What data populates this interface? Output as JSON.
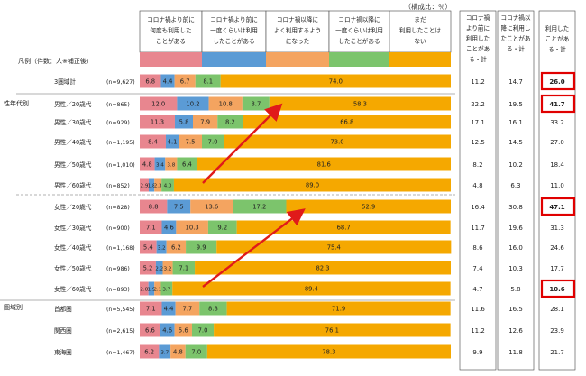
{
  "unit_note": "（構成比：％）",
  "legend": {
    "prefix": "凡例（件数：人※補正後）",
    "items": [
      {
        "label": "コロナ禍より前に何度も利用したことがある",
        "lines": [
          "コロナ禍より前に",
          "何度も利用した",
          "ことがある"
        ],
        "color": "#E8868F"
      },
      {
        "label": "コロナ禍より前に一度くらいは利用したことがある",
        "lines": [
          "コロナ禍より前に",
          "一度くらいは利用",
          "したことがある"
        ],
        "color": "#5B9BD5"
      },
      {
        "label": "コロナ禍以降によく利用するようになった",
        "lines": [
          "コロナ禍以降に",
          "よく利用するよう",
          "になった"
        ],
        "color": "#F4A460"
      },
      {
        "label": "コロナ禍以降に一度くらいは利用したことがある",
        "lines": [
          "コロナ禍以降に",
          "一度くらいは利用",
          "したことがある"
        ],
        "color": "#7CC46C"
      },
      {
        "label": "まだ利用したことはない",
        "lines": [
          "まだ",
          "利用したことは",
          "ない"
        ],
        "color": "#F5A800"
      }
    ]
  },
  "summary_headers": [
    [
      "コロナ禍",
      "より前に",
      "利用した",
      "ことがあ",
      "る・計"
    ],
    [
      "コロナ禍以",
      "降に利用し",
      "たことがあ",
      "る・計"
    ],
    [
      "利用した",
      "ことがあ",
      "る・計"
    ]
  ],
  "group_labels": {
    "sex_age": "性年代別",
    "region": "圏域別"
  },
  "chart_data": {
    "type": "bar",
    "stacked": true,
    "orientation": "horizontal",
    "title": "",
    "xlim": [
      0,
      100
    ],
    "series_names": [
      "コロナ禍より前に何度も利用したことがある",
      "コロナ禍より前に一度くらいは利用したことがある",
      "コロナ禍以降によく利用するようになった",
      "コロナ禍以降に一度くらいは利用したことがある",
      "まだ利用したことはない"
    ],
    "rows": [
      {
        "label": "3圏域計",
        "n": "(n=9,627)",
        "values": [
          6.8,
          4.4,
          6.7,
          8.1,
          74.0
        ],
        "before": "11.2",
        "after": "14.7",
        "total": "26.0",
        "highlight": true
      },
      {
        "label": "男性／20歳代",
        "n": "(n=865)",
        "values": [
          12.0,
          10.2,
          10.8,
          8.7,
          58.3
        ],
        "before": "22.2",
        "after": "19.5",
        "total": "41.7",
        "highlight": true
      },
      {
        "label": "男性／30歳代",
        "n": "(n=929)",
        "values": [
          11.3,
          5.8,
          7.9,
          8.2,
          66.8
        ],
        "before": "17.1",
        "after": "16.1",
        "total": "33.2",
        "highlight": false
      },
      {
        "label": "男性／40歳代",
        "n": "(n=1,195)",
        "values": [
          8.4,
          4.1,
          7.5,
          7.0,
          73.0
        ],
        "before": "12.5",
        "after": "14.5",
        "total": "27.0",
        "highlight": false
      },
      {
        "label": "男性／50歳代",
        "n": "(n=1,010)",
        "values": [
          4.8,
          3.4,
          3.8,
          6.4,
          81.6
        ],
        "before": "8.2",
        "after": "10.2",
        "total": "18.4",
        "highlight": false
      },
      {
        "label": "男性／60歳代",
        "n": "(n=852)",
        "values": [
          2.9,
          1.8,
          2.3,
          4.0,
          89.0
        ],
        "before": "4.8",
        "after": "6.3",
        "total": "11.0",
        "highlight": false
      },
      {
        "label": "女性／20歳代",
        "n": "(n=828)",
        "values": [
          8.8,
          7.5,
          13.6,
          17.2,
          52.9
        ],
        "before": "16.4",
        "after": "30.8",
        "total": "47.1",
        "highlight": true
      },
      {
        "label": "女性／30歳代",
        "n": "(n=900)",
        "values": [
          7.1,
          4.6,
          10.3,
          9.2,
          68.7
        ],
        "before": "11.7",
        "after": "19.6",
        "total": "31.3",
        "highlight": false
      },
      {
        "label": "女性／40歳代",
        "n": "(n=1,168)",
        "values": [
          5.4,
          3.2,
          6.2,
          9.9,
          75.4
        ],
        "before": "8.6",
        "after": "16.0",
        "total": "24.6",
        "highlight": false
      },
      {
        "label": "女性／50歳代",
        "n": "(n=986)",
        "values": [
          5.2,
          2.2,
          3.2,
          7.1,
          82.3
        ],
        "before": "7.4",
        "after": "10.3",
        "total": "17.7",
        "highlight": false
      },
      {
        "label": "女性／60歳代",
        "n": "(n=893)",
        "values": [
          2.8,
          1.9,
          2.1,
          3.7,
          89.4
        ],
        "before": "4.7",
        "after": "5.8",
        "total": "10.6",
        "highlight": true
      },
      {
        "label": "首都圏",
        "n": "(n=5,545)",
        "values": [
          7.1,
          4.4,
          7.7,
          8.8,
          71.9
        ],
        "before": "11.6",
        "after": "16.5",
        "total": "28.1",
        "highlight": false
      },
      {
        "label": "関西圏",
        "n": "(n=2,615)",
        "values": [
          6.6,
          4.6,
          5.6,
          7.0,
          76.1
        ],
        "before": "11.2",
        "after": "12.6",
        "total": "23.9",
        "highlight": false
      },
      {
        "label": "東海圏",
        "n": "(n=1,467)",
        "values": [
          6.2,
          3.7,
          4.8,
          7.0,
          78.3
        ],
        "before": "9.9",
        "after": "11.8",
        "total": "21.7",
        "highlight": false
      }
    ]
  },
  "colors": {
    "highlight_box": "#E00000",
    "arrow": "#E01A1A",
    "value_text": "#222222"
  }
}
